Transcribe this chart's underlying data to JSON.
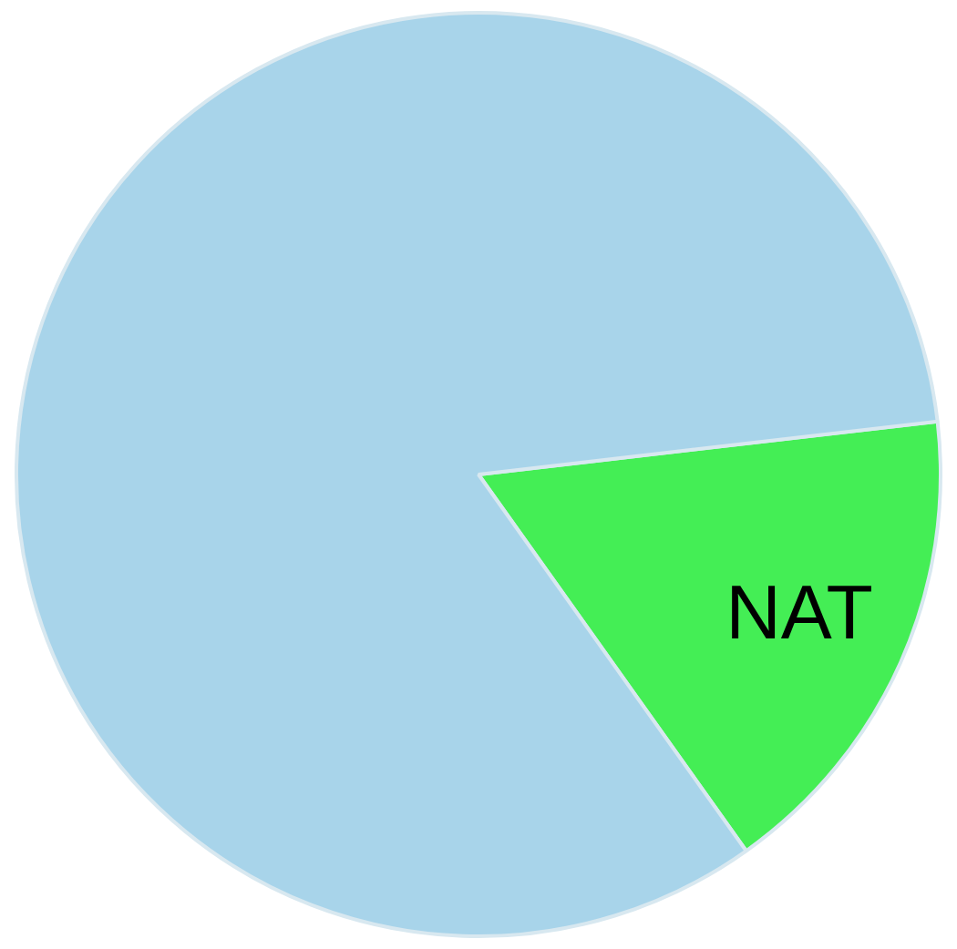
{
  "chart_data": {
    "type": "pie",
    "categories": [
      "NAT",
      null
    ],
    "values": [
      17,
      83
    ],
    "colors": [
      "#44ee55",
      "#a8d4ea"
    ],
    "legend": false
  }
}
